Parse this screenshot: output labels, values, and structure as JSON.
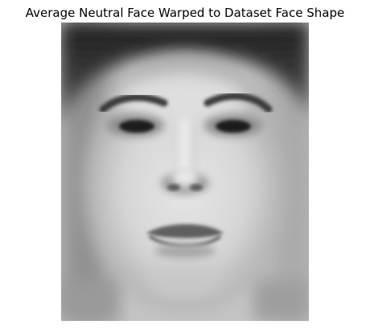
{
  "figure": {
    "title": "Average Neutral Face Warped to Dataset Face Shape"
  },
  "image": {
    "subject": "face-image",
    "colormap": "grayscale",
    "axes_visible": false
  }
}
